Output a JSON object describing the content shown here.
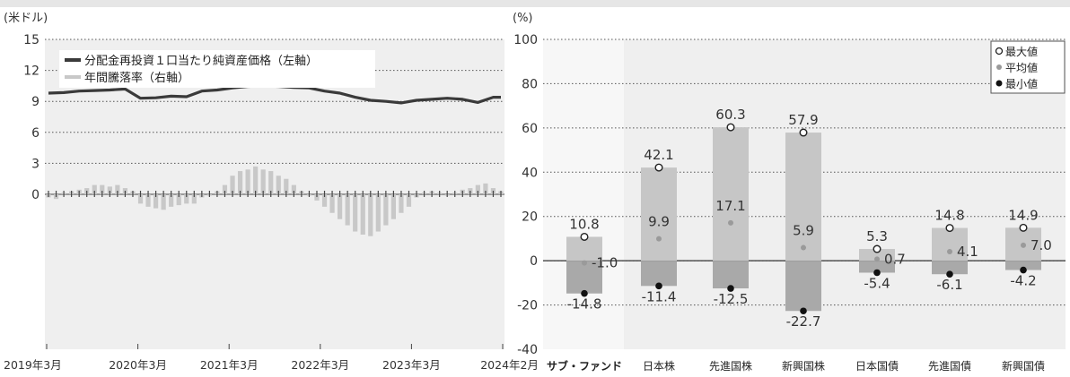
{
  "left_panel": {
    "unit_label": "(米ドル)",
    "legend": {
      "nav_label": "分配金再投資１口当たり純資産価格（左軸）",
      "return_label": "年間騰落率（右軸）"
    }
  },
  "right_panel": {
    "unit_label": "(%)",
    "legend": {
      "max_label": "最大値",
      "avg_label": "平均値",
      "min_label": "最小値"
    }
  },
  "chart_data": [
    {
      "type": "line",
      "title": "",
      "left_axis": {
        "ylim": [
          -15,
          15
        ],
        "ticks": [
          "15",
          "12",
          "9",
          "6",
          "3",
          "0"
        ]
      },
      "x_ticks": [
        "2019年3月",
        "2020年3月",
        "2021年3月",
        "2022年3月",
        "2023年3月",
        "2024年2月"
      ],
      "x_range": [
        "2019-03",
        "2024-02"
      ],
      "series": [
        {
          "name": "分配金再投資１口当たり純資産価格（左軸）",
          "type": "line",
          "x": [
            "2019-03",
            "2019-05",
            "2019-07",
            "2019-09",
            "2019-11",
            "2020-01",
            "2020-03",
            "2020-05",
            "2020-07",
            "2020-09",
            "2020-11",
            "2021-01",
            "2021-03",
            "2021-05",
            "2021-07",
            "2021-09",
            "2021-11",
            "2022-01",
            "2022-03",
            "2022-05",
            "2022-07",
            "2022-09",
            "2022-11",
            "2023-01",
            "2023-03",
            "2023-05",
            "2023-07",
            "2023-09",
            "2023-11",
            "2024-01",
            "2024-02"
          ],
          "y": [
            9.8,
            9.85,
            10.0,
            10.05,
            10.1,
            10.2,
            9.3,
            9.35,
            9.5,
            9.45,
            10.0,
            10.1,
            10.3,
            10.45,
            10.5,
            10.45,
            10.35,
            10.3,
            10.0,
            9.8,
            9.4,
            9.1,
            9.0,
            8.85,
            9.1,
            9.2,
            9.3,
            9.2,
            8.9,
            9.4,
            9.4
          ]
        },
        {
          "name": "年間騰落率（右軸）",
          "type": "bar",
          "x": [
            "2019-03",
            "2019-04",
            "2019-05",
            "2019-06",
            "2019-07",
            "2019-08",
            "2019-09",
            "2019-10",
            "2019-11",
            "2019-12",
            "2020-01",
            "2020-02",
            "2020-03",
            "2020-04",
            "2020-05",
            "2020-06",
            "2020-07",
            "2020-08",
            "2020-09",
            "2020-10",
            "2020-11",
            "2020-12",
            "2021-01",
            "2021-02",
            "2021-03",
            "2021-04",
            "2021-05",
            "2021-06",
            "2021-07",
            "2021-08",
            "2021-09",
            "2021-10",
            "2021-11",
            "2021-12",
            "2022-01",
            "2022-02",
            "2022-03",
            "2022-04",
            "2022-05",
            "2022-06",
            "2022-07",
            "2022-08",
            "2022-09",
            "2022-10",
            "2022-11",
            "2022-12",
            "2023-01",
            "2023-02",
            "2023-03",
            "2023-04",
            "2023-05",
            "2023-06",
            "2023-07",
            "2023-08",
            "2023-09",
            "2023-10",
            "2023-11",
            "2023-12",
            "2024-01",
            "2024-02"
          ],
          "y": [
            -1,
            -1.5,
            0.5,
            1,
            1.5,
            2,
            3,
            3,
            2.5,
            3,
            2,
            1,
            -3,
            -4,
            -4.5,
            -5,
            -4,
            -3.5,
            -3,
            -3,
            -1,
            0,
            1,
            3,
            6,
            7.5,
            8,
            9,
            8,
            7.5,
            6,
            5,
            3,
            1,
            0,
            -2,
            -4,
            -6,
            -8,
            -10,
            -12,
            -13,
            -13.5,
            -12,
            -10,
            -8,
            -6,
            -4,
            -1,
            0.5,
            1,
            0.5,
            0,
            0.5,
            1.5,
            2,
            3,
            3.5,
            2,
            1
          ]
        }
      ],
      "right_axis_range": [
        -50,
        50
      ]
    },
    {
      "type": "bar",
      "title": "",
      "ylabel": "(%)",
      "ylim": [
        -40,
        100
      ],
      "yticks": [
        100,
        80,
        60,
        40,
        20,
        0,
        -20,
        -40
      ],
      "categories": [
        "サブ・ファンド",
        "日本株",
        "先進国株",
        "新興国株",
        "日本国債",
        "先進国債",
        "新興国債"
      ],
      "series": [
        {
          "name": "最大値",
          "values": [
            10.8,
            42.1,
            60.3,
            57.9,
            5.3,
            14.8,
            14.9
          ]
        },
        {
          "name": "平均値",
          "values": [
            -1.0,
            9.9,
            17.1,
            5.9,
            0.7,
            4.1,
            7.0
          ]
        },
        {
          "name": "最小値",
          "values": [
            -14.8,
            -11.4,
            -12.5,
            -22.7,
            -5.4,
            -6.1,
            -4.2
          ]
        }
      ],
      "value_labels": {
        "max": [
          "10.8",
          "42.1",
          "60.3",
          "57.9",
          "5.3",
          "14.8",
          "14.9"
        ],
        "avg": [
          "-1.0",
          "9.9",
          "17.1",
          "5.9",
          "0.7",
          "4.1",
          "7.0"
        ],
        "min": [
          "-14.8",
          "-11.4",
          "-12.5",
          "-22.7",
          "-5.4",
          "-6.1",
          "-4.2"
        ]
      },
      "highlight_category": "サブ・ファンド",
      "grid": "dotted horizontal"
    }
  ],
  "colors": {
    "nav_line": "#3a3a3a",
    "return_bars": "#c8c8c8",
    "range_bar": "#c6c6c6",
    "range_bar_dark": "#a9a9a9",
    "avg_marker": "#9a9a9a",
    "panel_bg": "#efefef"
  }
}
